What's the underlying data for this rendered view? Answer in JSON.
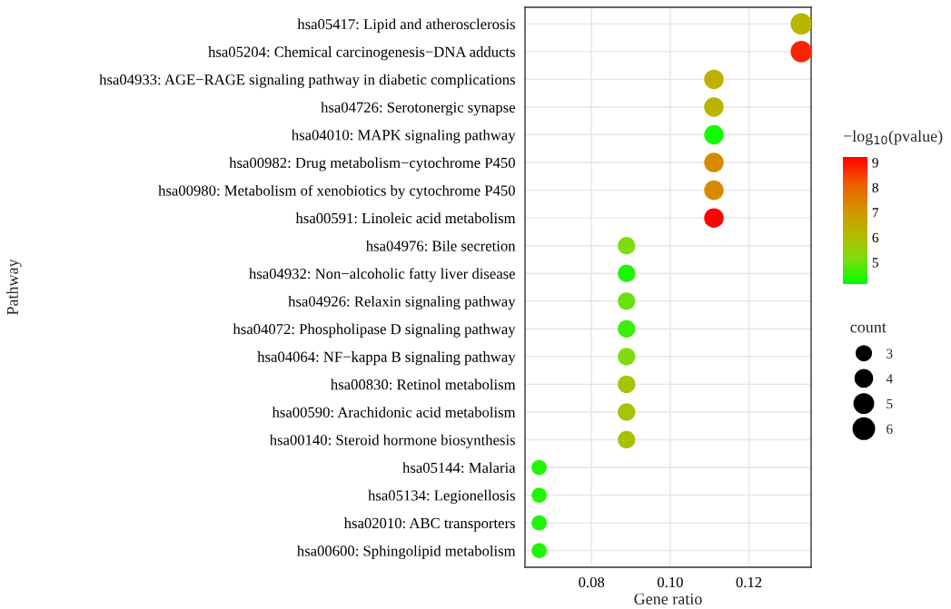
{
  "chart_data": {
    "type": "bubble",
    "xlabel": "Gene ratio",
    "ylabel": "Pathway",
    "legend_title": "count",
    "clabel": "−log$_{10}$(pvalue)",
    "categories": [
      "hsa05417: Lipid and atherosclerosis",
      "hsa05204: Chemical carcinogenesis−DNA adducts",
      "hsa04933: AGE−RAGE signaling pathway in diabetic complications",
      "hsa04726: Serotonergic synapse",
      "hsa04010: MAPK signaling pathway",
      "hsa00982: Drug metabolism−cytochrome P450",
      "hsa00980: Metabolism of xenobiotics by cytochrome P450",
      "hsa00591: Linoleic acid metabolism",
      "hsa04976: Bile secretion",
      "hsa04932: Non−alcoholic fatty liver disease",
      "hsa04926: Relaxin signaling pathway",
      "hsa04072: Phospholipase D signaling pathway",
      "hsa04064: NF−kappa B signaling pathway",
      "hsa00830: Retinol metabolism",
      "hsa00590: Arachidonic acid metabolism",
      "hsa00140: Steroid hormone biosynthesis",
      "hsa05144: Malaria",
      "hsa05134: Legionellosis",
      "hsa02010: ABC transporters",
      "hsa00600: Sphingolipid metabolism"
    ],
    "values": [
      0.1333,
      0.1333,
      0.1111,
      0.1111,
      0.1111,
      0.1111,
      0.1111,
      0.1111,
      0.0889,
      0.0889,
      0.0889,
      0.0889,
      0.0889,
      0.0889,
      0.0889,
      0.0889,
      0.0667,
      0.0667,
      0.0667,
      0.0667
    ],
    "sizes": [
      6,
      6,
      5,
      5,
      5,
      5,
      5,
      5,
      4,
      4,
      4,
      4,
      4,
      4,
      4,
      4,
      3,
      3,
      3,
      3
    ],
    "cvalues": [
      6.2,
      8.8,
      6.3,
      6.3,
      4.3,
      7.3,
      7.3,
      9.2,
      5.2,
      4.4,
      5.0,
      4.6,
      5.2,
      5.8,
      5.8,
      5.9,
      4.4,
      4.4,
      4.4,
      4.4
    ],
    "size_legend": [
      3,
      4,
      5,
      6
    ],
    "clim": [
      4.13,
      9.22
    ],
    "cticks": [
      5,
      6,
      7,
      8,
      9
    ],
    "orientation": "horizontal",
    "xlim": [
      0.0631,
      0.1358
    ],
    "xticks": [
      0.08,
      {
        "value": 0.1,
        "label": "0.10"
      },
      0.12
    ],
    "grid": true
  }
}
